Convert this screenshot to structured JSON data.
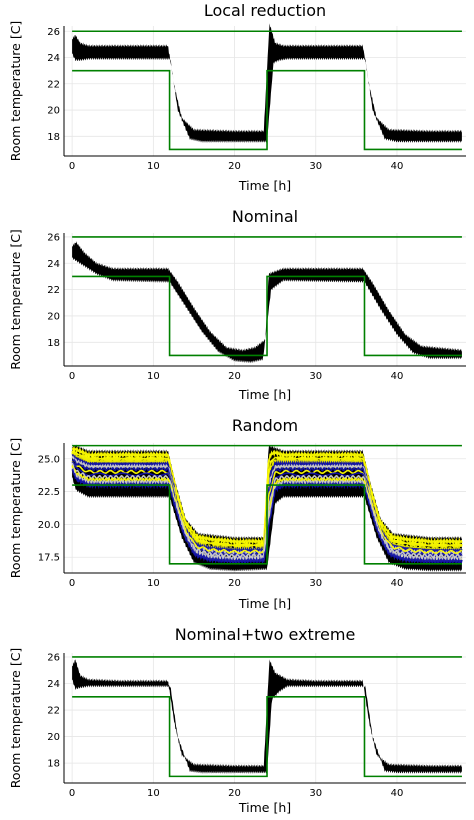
{
  "chart_data": [
    {
      "type": "line",
      "title": "Local reduction",
      "xlabel": "Time [h]",
      "ylabel": "Room temperature [C]",
      "xlim": [
        -1,
        48.5
      ],
      "ylim": [
        16.5,
        26.4
      ],
      "xticks": [
        0,
        10,
        20,
        30,
        40
      ],
      "xtick_labels": [
        "0",
        "10",
        "20",
        "30",
        "40"
      ],
      "yticks": [
        18,
        20,
        22,
        24,
        26
      ],
      "ytick_labels": [
        "18",
        "20",
        "22",
        "24",
        "26"
      ],
      "grid": true,
      "legend": "none",
      "bounds": {
        "color": "#008000",
        "upper": {
          "x": [
            0,
            48
          ],
          "y": [
            26,
            26
          ]
        },
        "lower": {
          "x": [
            0,
            12,
            12,
            24,
            24,
            36,
            36,
            48
          ],
          "y": [
            23,
            23,
            17,
            17,
            23,
            23,
            17,
            17
          ]
        }
      },
      "temperature_band": {
        "color": "#000000",
        "upper": {
          "x": [
            0,
            0.4,
            1,
            2,
            6,
            11.8,
            12.6,
            13.5,
            15,
            20,
            23.6,
            24.3,
            25,
            26,
            30,
            35.8,
            36.6,
            37.5,
            39,
            44,
            48
          ],
          "y": [
            25.4,
            25.7,
            25.1,
            24.9,
            24.9,
            24.9,
            21.8,
            19.4,
            18.5,
            18.4,
            18.4,
            26.6,
            25.1,
            24.9,
            24.9,
            24.9,
            21.8,
            19.4,
            18.5,
            18.4,
            18.4
          ]
        },
        "lower": {
          "x": [
            0,
            0.4,
            1,
            2,
            6,
            12.1,
            13,
            14.5,
            16,
            20,
            24,
            24.8,
            25.5,
            26.5,
            30,
            36.1,
            37,
            38.5,
            40,
            44,
            48
          ],
          "y": [
            24.3,
            23.8,
            23.8,
            23.9,
            23.9,
            23.9,
            20.0,
            17.8,
            17.6,
            17.6,
            17.6,
            23.6,
            23.8,
            23.9,
            23.9,
            23.9,
            20.0,
            17.8,
            17.6,
            17.6,
            17.6
          ]
        }
      }
    },
    {
      "type": "line",
      "title": "Nominal",
      "xlabel": "Time [h]",
      "ylabel": "Room temperature [C]",
      "xlim": [
        -1,
        48.5
      ],
      "ylim": [
        16.2,
        26.3
      ],
      "xticks": [
        0,
        10,
        20,
        30,
        40
      ],
      "xtick_labels": [
        "0",
        "10",
        "20",
        "30",
        "40"
      ],
      "yticks": [
        18,
        20,
        22,
        24,
        26
      ],
      "ytick_labels": [
        "18",
        "20",
        "22",
        "24",
        "26"
      ],
      "grid": true,
      "legend": "none",
      "bounds": {
        "color": "#008000",
        "upper": {
          "x": [
            0,
            48
          ],
          "y": [
            26,
            26
          ]
        },
        "lower": {
          "x": [
            0,
            12,
            12,
            24,
            24,
            36,
            36,
            48
          ],
          "y": [
            23,
            23,
            17,
            17,
            23,
            23,
            17,
            17
          ]
        }
      },
      "temperature_band": {
        "color": "#000000",
        "upper": {
          "x": [
            0,
            0.5,
            1.5,
            3,
            5,
            11.8,
            13,
            15,
            17,
            19,
            21,
            22.5,
            23.8,
            24.2,
            26,
            35.8,
            37,
            39,
            41,
            43,
            48
          ],
          "y": [
            25.3,
            25.6,
            24.8,
            24.0,
            23.6,
            23.6,
            22.6,
            20.6,
            18.8,
            17.6,
            17.4,
            17.6,
            18.2,
            23.2,
            23.6,
            23.6,
            22.5,
            20.4,
            18.6,
            17.7,
            17.4
          ]
        },
        "lower": {
          "x": [
            0,
            0.5,
            1.5,
            3,
            5,
            12,
            14,
            16,
            18,
            20,
            22,
            23.5,
            24.5,
            26,
            36,
            38,
            40,
            42,
            44,
            48
          ],
          "y": [
            24.4,
            24.2,
            23.8,
            23.2,
            22.7,
            22.6,
            20.7,
            18.8,
            17.3,
            16.6,
            16.5,
            16.7,
            22.0,
            22.7,
            22.6,
            20.5,
            18.6,
            17.2,
            16.8,
            16.8
          ]
        }
      }
    },
    {
      "type": "line",
      "title": "Random",
      "xlabel": "Time [h]",
      "ylabel": "Room temperature [C]",
      "xlim": [
        -1,
        48.5
      ],
      "ylim": [
        16.3,
        26.2
      ],
      "xticks": [
        0,
        10,
        20,
        30,
        40
      ],
      "xtick_labels": [
        "0",
        "10",
        "20",
        "30",
        "40"
      ],
      "yticks": [
        17.5,
        20.0,
        22.5,
        25.0
      ],
      "ytick_labels": [
        "17.5",
        "20.0",
        "22.5",
        "25.0"
      ],
      "grid": true,
      "legend": "none",
      "bounds": {
        "color": "#008000",
        "upper": {
          "x": [
            0,
            48
          ],
          "y": [
            26,
            26
          ]
        },
        "lower": {
          "x": [
            0,
            12,
            12,
            24,
            24,
            36,
            36,
            48
          ],
          "y": [
            23,
            23,
            17,
            17,
            23,
            23,
            17,
            17
          ]
        }
      },
      "temperature_band": {
        "color": "#000000",
        "upper": {
          "x": [
            0,
            0.4,
            2,
            6,
            11.8,
            12.8,
            14,
            15.5,
            20,
            23.6,
            24.2,
            26,
            35.8,
            36.8,
            38,
            39.5,
            44,
            48
          ],
          "y": [
            25.9,
            26.0,
            25.6,
            25.6,
            25.6,
            23.0,
            20.4,
            19.3,
            19.0,
            19.0,
            26.0,
            25.6,
            25.6,
            23.0,
            20.4,
            19.3,
            19.0,
            19.0
          ]
        },
        "lower": {
          "x": [
            0,
            0.5,
            2,
            6,
            12,
            13.5,
            15,
            17,
            20,
            24,
            25,
            26,
            36,
            37.5,
            39,
            41,
            44,
            48
          ],
          "y": [
            23.6,
            22.6,
            22.1,
            22.1,
            22.1,
            19.0,
            17.1,
            16.6,
            16.5,
            16.6,
            21.6,
            22.1,
            22.1,
            19.0,
            17.1,
            16.6,
            16.5,
            16.5
          ]
        }
      },
      "series": [
        {
          "color": "#ffff00",
          "steady_high": 25.3,
          "steady_low": 18.7
        },
        {
          "color": "#ffff00",
          "steady_high": 25.0,
          "steady_low": 18.4
        },
        {
          "color": "#eeee00",
          "steady_high": 24.8,
          "steady_low": 18.1
        },
        {
          "color": "#1111aa",
          "steady_high": 24.6,
          "steady_low": 18.0
        },
        {
          "color": "#cccccc",
          "steady_high": 24.4,
          "steady_low": 17.8
        },
        {
          "color": "#1111aa",
          "steady_high": 24.2,
          "steady_low": 17.7
        },
        {
          "color": "#ffff00",
          "steady_high": 24.0,
          "steady_low": 17.9
        },
        {
          "color": "#1111aa",
          "steady_high": 23.8,
          "steady_low": 17.5
        },
        {
          "color": "#cccccc",
          "steady_high": 23.6,
          "steady_low": 17.6
        },
        {
          "color": "#ffff00",
          "steady_high": 23.4,
          "steady_low": 17.3
        },
        {
          "color": "#cccccc",
          "steady_high": 23.2,
          "steady_low": 17.4
        },
        {
          "color": "#1111aa",
          "steady_high": 23.0,
          "steady_low": 17.2
        }
      ]
    },
    {
      "type": "line",
      "title": "Nominal+two extreme",
      "xlabel": "Time [h]",
      "ylabel": "Room temperature [C]",
      "xlim": [
        -1,
        48.5
      ],
      "ylim": [
        16.5,
        26.3
      ],
      "xticks": [
        0,
        10,
        20,
        30,
        40
      ],
      "xtick_labels": [
        "0",
        "10",
        "20",
        "30",
        "40"
      ],
      "yticks": [
        18,
        20,
        22,
        24,
        26
      ],
      "ytick_labels": [
        "18",
        "20",
        "22",
        "24",
        "26"
      ],
      "grid": true,
      "legend": "none",
      "bounds": {
        "color": "#008000",
        "upper": {
          "x": [
            0,
            48
          ],
          "y": [
            26,
            26
          ]
        },
        "lower": {
          "x": [
            0,
            12,
            12,
            24,
            24,
            36,
            36,
            48
          ],
          "y": [
            23,
            23,
            17,
            17,
            23,
            23,
            17,
            17
          ]
        }
      },
      "temperature_band": {
        "color": "#000000",
        "upper": {
          "x": [
            0,
            0.4,
            1,
            2,
            6,
            11.8,
            12.6,
            13.5,
            15,
            20,
            23.6,
            24.3,
            25,
            26.5,
            30,
            35.8,
            36.6,
            37.5,
            39,
            44,
            48
          ],
          "y": [
            25.3,
            25.8,
            24.6,
            24.3,
            24.2,
            24.2,
            21.0,
            18.6,
            17.9,
            17.8,
            17.8,
            25.8,
            24.8,
            24.3,
            24.2,
            24.2,
            21.0,
            18.6,
            17.9,
            17.8,
            17.8
          ]
        },
        "lower": {
          "x": [
            0,
            0.4,
            1,
            2,
            6,
            12.1,
            13,
            14.5,
            16,
            20,
            24,
            24.6,
            25.5,
            26.5,
            30,
            36.1,
            37,
            38.5,
            40,
            44,
            48
          ],
          "y": [
            24.3,
            23.6,
            23.7,
            23.8,
            23.8,
            23.8,
            20.0,
            17.4,
            17.3,
            17.3,
            17.3,
            22.8,
            23.4,
            23.8,
            23.8,
            23.8,
            20.0,
            17.4,
            17.3,
            17.3,
            17.3
          ]
        }
      }
    }
  ]
}
